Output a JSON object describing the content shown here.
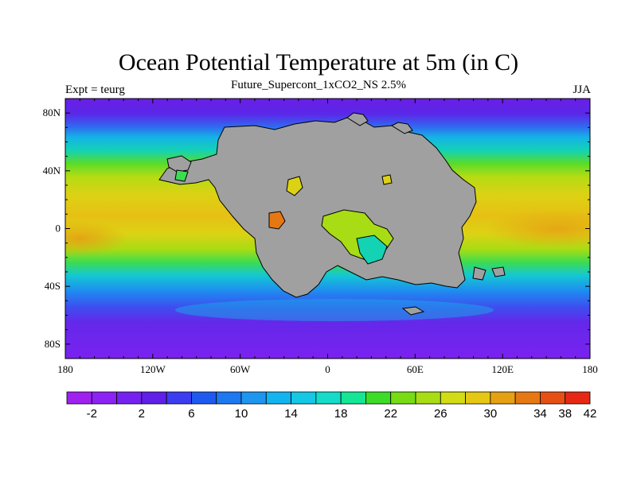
{
  "title": "Ocean Potential Temperature at 5m (in C)",
  "subtitle": "Future_Supercont_1xCO2_NS 2.5%",
  "left_label": "Expt = teurg",
  "right_label": "JJA",
  "map": {
    "lon_range": [
      -180,
      180
    ],
    "lat_range": [
      -90,
      90
    ],
    "land_color": "#a0a0a0",
    "x_ticks": [
      {
        "value": -180,
        "label": "180"
      },
      {
        "value": -120,
        "label": "120W"
      },
      {
        "value": -60,
        "label": "60W"
      },
      {
        "value": 0,
        "label": "0"
      },
      {
        "value": 60,
        "label": "60E"
      },
      {
        "value": 120,
        "label": "120E"
      },
      {
        "value": 180,
        "label": "180"
      }
    ],
    "y_ticks": [
      {
        "value": 80,
        "label": "80N"
      },
      {
        "value": 40,
        "label": "40N"
      },
      {
        "value": 0,
        "label": "0"
      },
      {
        "value": -40,
        "label": "40S"
      },
      {
        "value": -80,
        "label": "80S"
      }
    ]
  },
  "colorbar": {
    "colors": [
      "#a020f0",
      "#8c22f5",
      "#7522f0",
      "#6020e8",
      "#3c3cf0",
      "#1e5af0",
      "#1e78f0",
      "#1e96f0",
      "#14b4f0",
      "#14c8e6",
      "#14dcc8",
      "#14e696",
      "#3cdc28",
      "#78dc14",
      "#a8dc14",
      "#d2dc14",
      "#e6c814",
      "#e6a014",
      "#e67814",
      "#e65014",
      "#e62814"
    ],
    "labels": [
      {
        "after_index": 1,
        "label": "-2"
      },
      {
        "after_index": 3,
        "label": "2"
      },
      {
        "after_index": 5,
        "label": "6"
      },
      {
        "after_index": 7,
        "label": "10"
      },
      {
        "after_index": 9,
        "label": "14"
      },
      {
        "after_index": 11,
        "label": "18"
      },
      {
        "after_index": 13,
        "label": "22"
      },
      {
        "after_index": 15,
        "label": "26"
      },
      {
        "after_index": 17,
        "label": "30"
      },
      {
        "after_index": 19,
        "label": "34"
      },
      {
        "after_index": 20,
        "label": "38"
      },
      {
        "after_index": 21,
        "label": "42"
      }
    ]
  }
}
